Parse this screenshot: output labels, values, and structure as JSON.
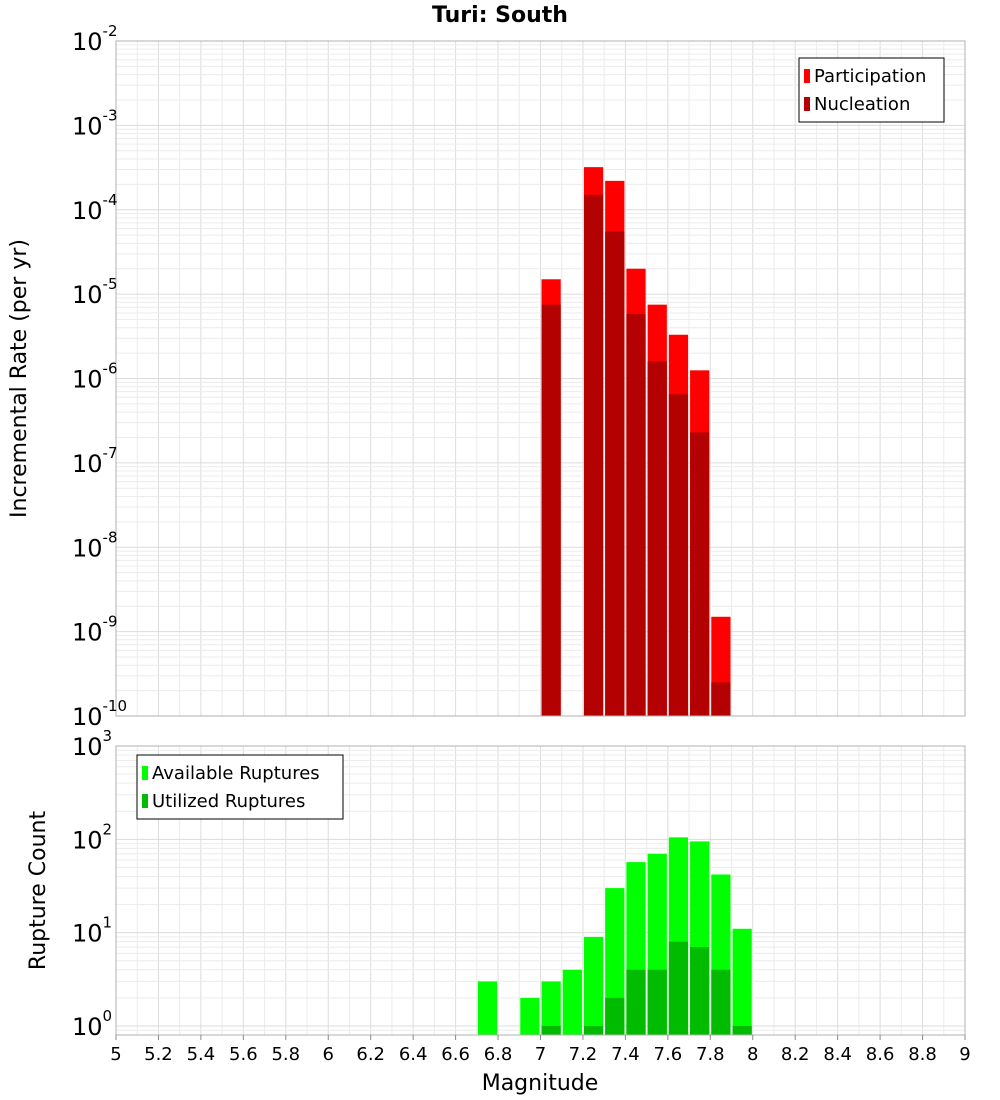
{
  "chart_data": [
    {
      "type": "bar",
      "title": "Turi: South",
      "xlabel": "Magnitude",
      "ylabel": "Incremental Rate (per yr)",
      "xlim": [
        5,
        9
      ],
      "ylim": [
        1e-10,
        0.01
      ],
      "yscale": "log",
      "grid": true,
      "legend_position": "top-right",
      "x_ticks": [
        "5",
        "5.2",
        "5.4",
        "5.6",
        "5.8",
        "6",
        "6.2",
        "6.4",
        "6.6",
        "6.8",
        "7",
        "7.2",
        "7.4",
        "7.6",
        "7.8",
        "8",
        "8.2",
        "8.4",
        "8.6",
        "8.8",
        "9"
      ],
      "y_ticks": [
        {
          "base": "10",
          "exp": "-10"
        },
        {
          "base": "10",
          "exp": "-9"
        },
        {
          "base": "10",
          "exp": "-8"
        },
        {
          "base": "10",
          "exp": "-7"
        },
        {
          "base": "10",
          "exp": "-6"
        },
        {
          "base": "10",
          "exp": "-5"
        },
        {
          "base": "10",
          "exp": "-4"
        },
        {
          "base": "10",
          "exp": "-3"
        },
        {
          "base": "10",
          "exp": "-2"
        }
      ],
      "x": [
        7.05,
        7.15,
        7.25,
        7.35,
        7.45,
        7.55,
        7.65,
        7.75,
        7.85
      ],
      "series": [
        {
          "name": "Participation",
          "color": "#ff0000",
          "values": [
            1.5e-05,
            null,
            0.00032,
            0.00022,
            2e-05,
            7.5e-06,
            3.3e-06,
            1.25e-06,
            1.5e-09
          ]
        },
        {
          "name": "Nucleation",
          "color": "#b30000",
          "values": [
            7.5e-06,
            null,
            0.00015,
            5.5e-05,
            5.8e-06,
            1.6e-06,
            6.5e-07,
            2.3e-07,
            2.5e-10
          ]
        }
      ]
    },
    {
      "type": "bar",
      "xlabel": "Magnitude",
      "ylabel": "Rupture Count",
      "xlim": [
        5,
        9
      ],
      "ylim": [
        0.8,
        1000
      ],
      "yscale": "log",
      "grid": true,
      "legend_position": "top-left",
      "y_ticks": [
        {
          "base": "10",
          "exp": "0"
        },
        {
          "base": "10",
          "exp": "1"
        },
        {
          "base": "10",
          "exp": "2"
        },
        {
          "base": "10",
          "exp": "3"
        }
      ],
      "x": [
        6.75,
        6.85,
        6.95,
        7.05,
        7.15,
        7.25,
        7.35,
        7.45,
        7.55,
        7.65,
        7.75,
        7.85,
        7.95
      ],
      "series": [
        {
          "name": "Available Ruptures",
          "color": "#00ff00",
          "values": [
            3,
            null,
            2,
            3,
            4,
            9,
            30,
            57,
            70,
            105,
            95,
            42,
            11
          ]
        },
        {
          "name": "Utilized Ruptures",
          "color": "#00bb00",
          "values": [
            null,
            null,
            null,
            1,
            null,
            1,
            2,
            4,
            4,
            8,
            7,
            4,
            1
          ]
        }
      ]
    }
  ]
}
